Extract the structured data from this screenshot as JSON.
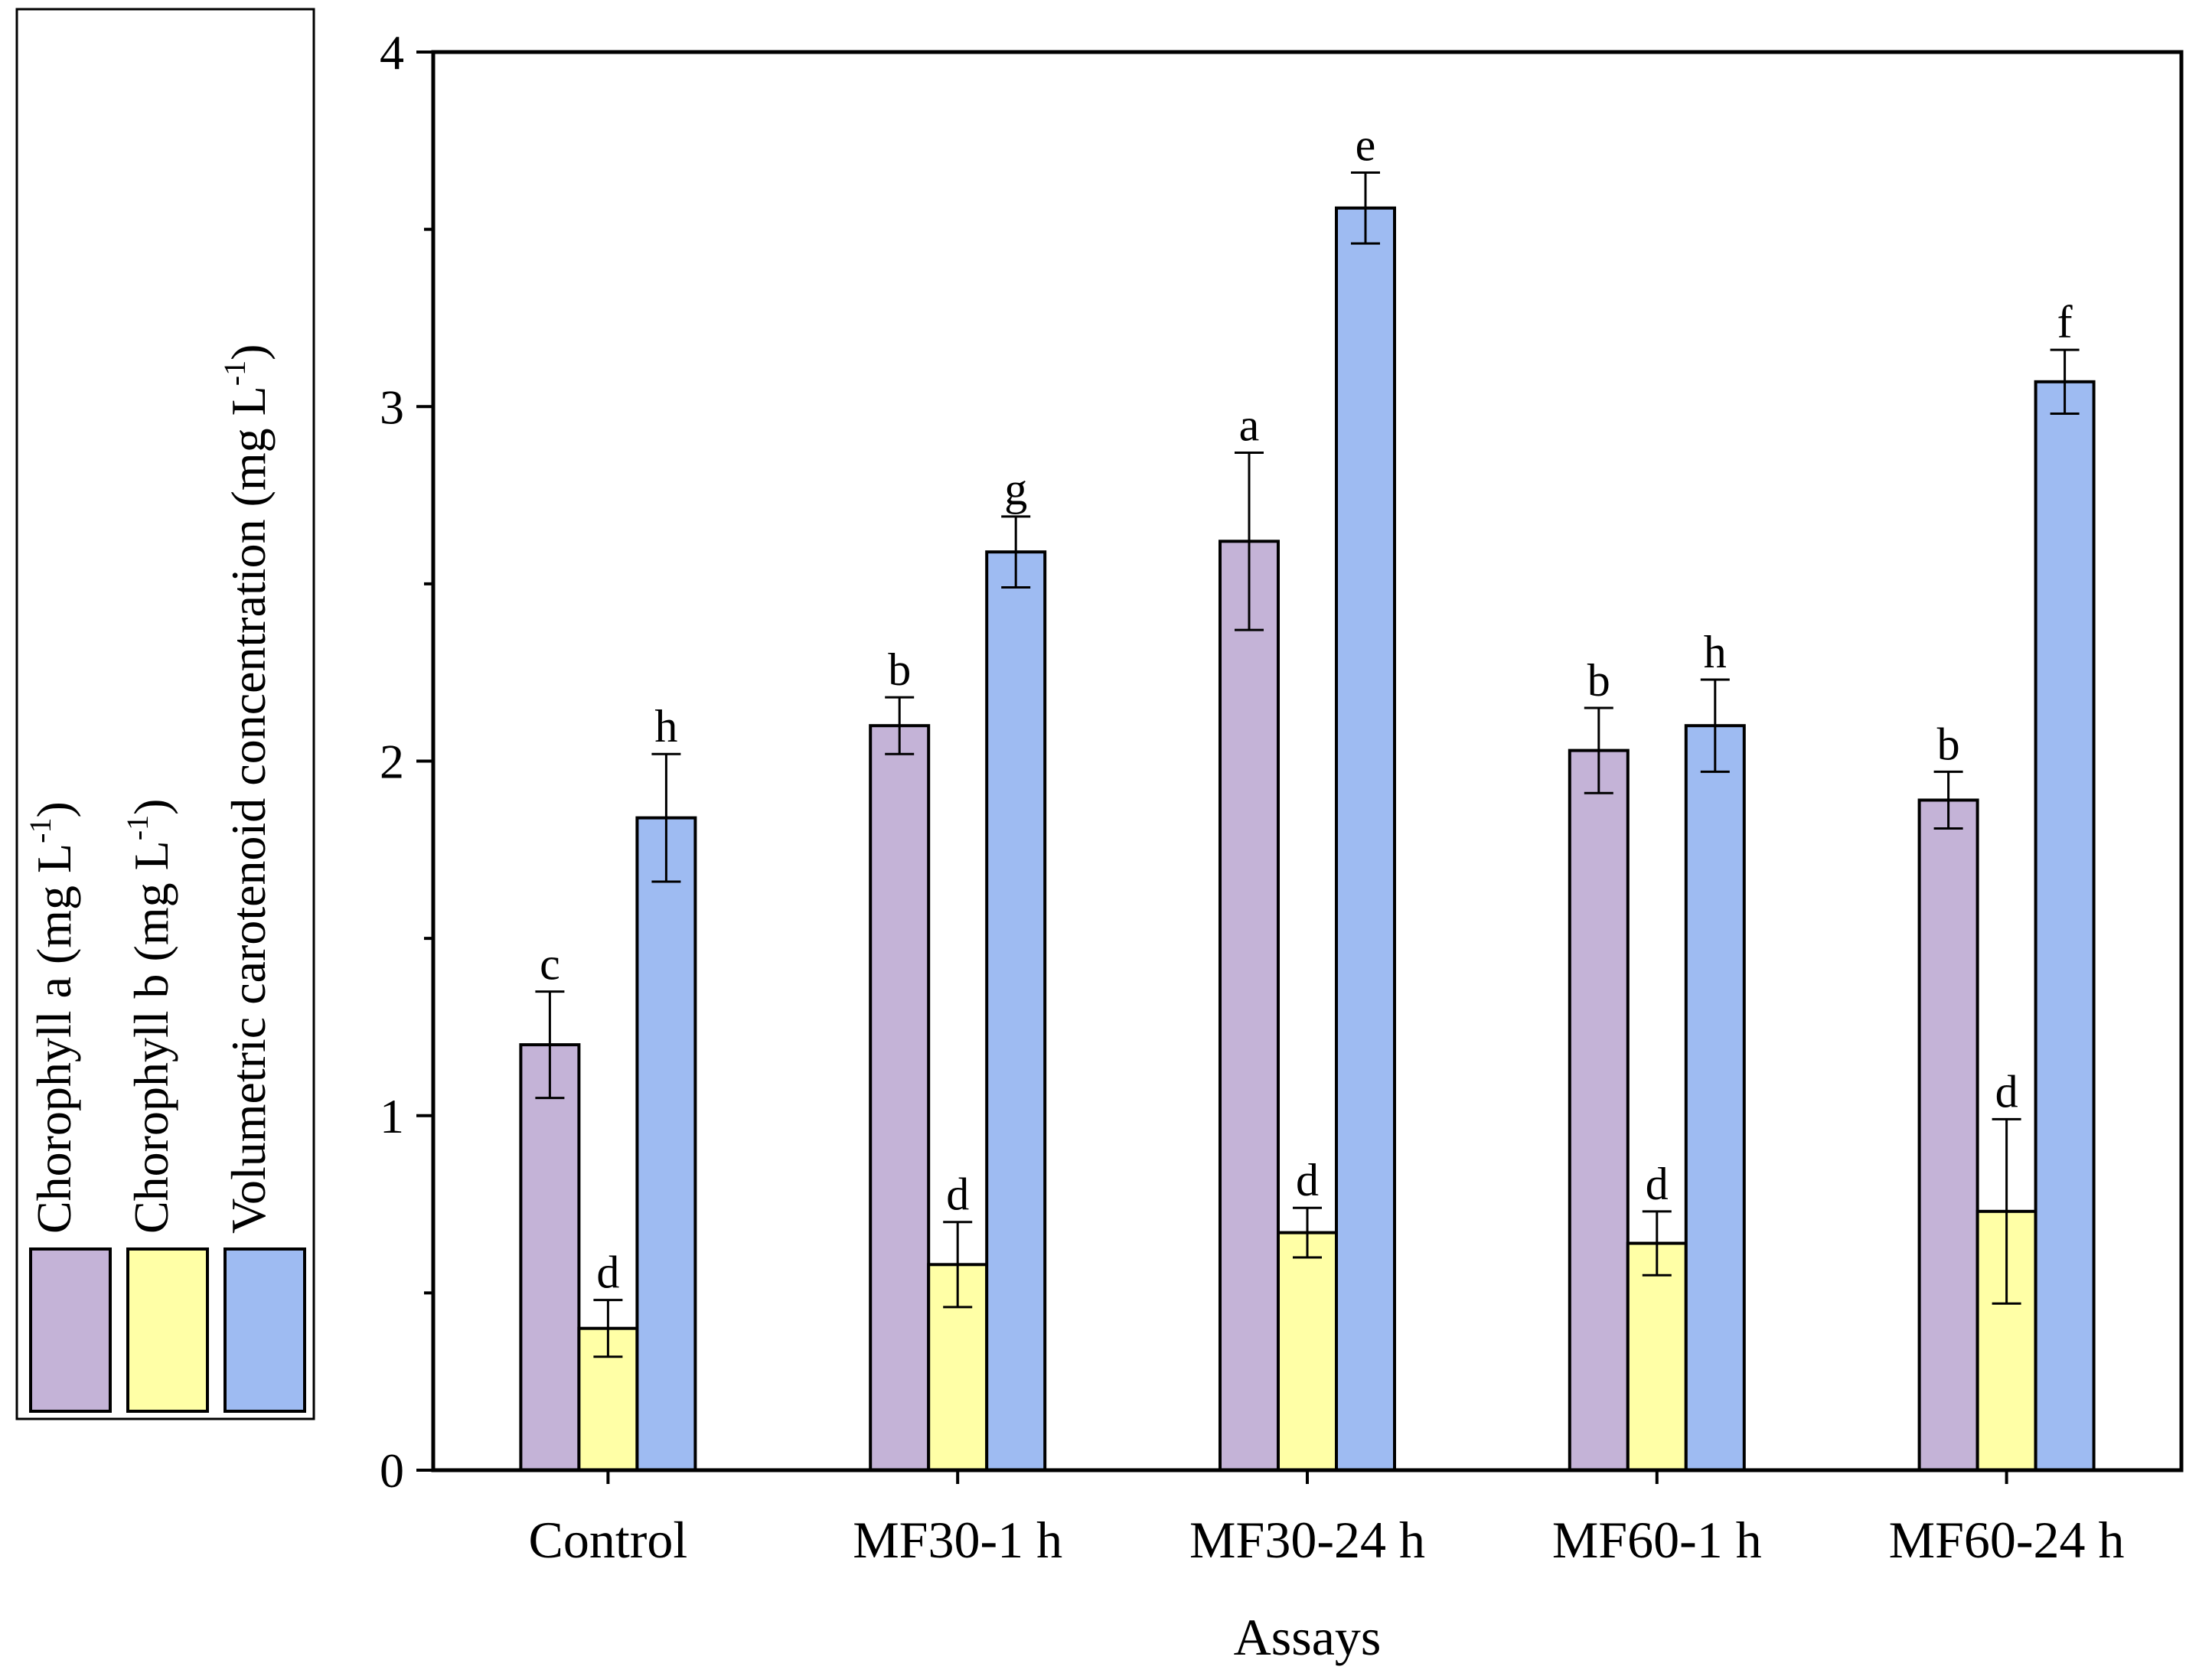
{
  "chart_data": {
    "type": "bar",
    "xlabel": "Assays",
    "ylabel": "",
    "ylim": [
      0,
      4
    ],
    "yticks": [
      "0",
      "1",
      "2",
      "3",
      "4"
    ],
    "categories": [
      "Control",
      "MF30-1 h",
      "MF30-24 h",
      "MF60-1 h",
      "MF60-24 h"
    ],
    "series": [
      {
        "name": "Chorophyll a (mg L",
        "sup": "-1",
        "close": ")",
        "color": "#c4b3d7",
        "values": [
          1.2,
          2.1,
          2.62,
          2.03,
          1.89
        ],
        "errors": [
          0.15,
          0.08,
          0.25,
          0.12,
          0.08
        ],
        "letters": [
          "c",
          "b",
          "a",
          "b",
          "b"
        ]
      },
      {
        "name": "Chorophyll b (mg L",
        "sup": "-1",
        "close": ")",
        "color": "#ffffa6",
        "values": [
          0.4,
          0.58,
          0.67,
          0.64,
          0.73
        ],
        "errors": [
          0.08,
          0.12,
          0.07,
          0.09,
          0.26
        ],
        "letters": [
          "d",
          "d",
          "d",
          "d",
          "d"
        ]
      },
      {
        "name": "Volumetric carotenoid concentration (mg L",
        "sup": "-1",
        "close": ")",
        "color": "#9ebbf2",
        "values": [
          1.84,
          2.59,
          3.56,
          2.1,
          3.07
        ],
        "errors": [
          0.18,
          0.1,
          0.1,
          0.13,
          0.09
        ],
        "letters": [
          "h",
          "g",
          "e",
          "h",
          "f"
        ]
      }
    ],
    "legend_position": "left"
  }
}
